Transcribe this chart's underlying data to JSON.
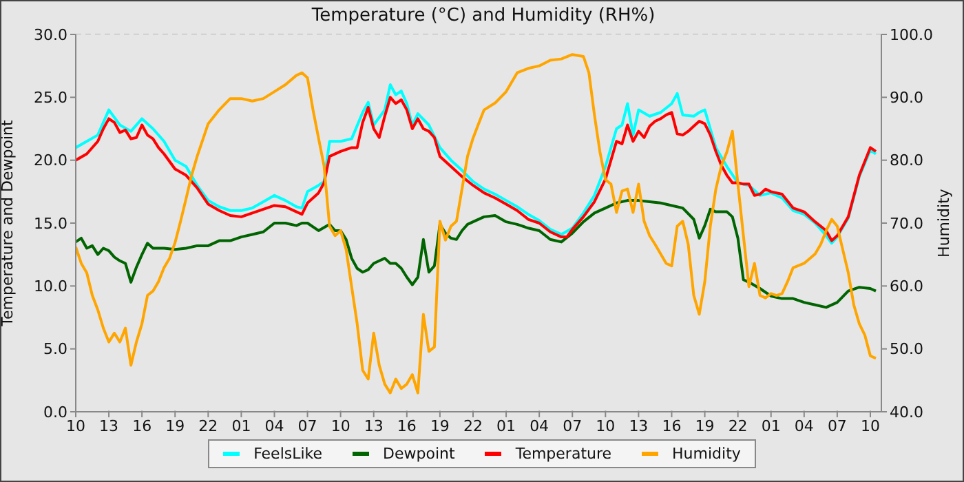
{
  "chart_data": {
    "type": "line",
    "title": "Temperature (°C) and Humidity (RH%)",
    "ylabel": "Temperature and Dewpoint",
    "y2label": "Humidity",
    "xlim": [
      "--01-01T10:00",
      "--01-04T11:00"
    ],
    "xticks": [
      {
        "value": "--01-01T10:00",
        "label": "10"
      },
      {
        "value": "--01-01T13:00",
        "label": "13"
      },
      {
        "value": "--01-01T16:00",
        "label": "16"
      },
      {
        "value": "--01-01T19:00",
        "label": "19"
      },
      {
        "value": "--01-01T22:00",
        "label": "22"
      },
      {
        "value": "--01-02T01:00",
        "label": "01"
      },
      {
        "value": "--01-02T04:00",
        "label": "04"
      },
      {
        "value": "--01-02T07:00",
        "label": "07"
      },
      {
        "value": "--01-02T10:00",
        "label": "10"
      },
      {
        "value": "--01-02T13:00",
        "label": "13"
      },
      {
        "value": "--01-02T16:00",
        "label": "16"
      },
      {
        "value": "--01-02T19:00",
        "label": "19"
      },
      {
        "value": "--01-02T22:00",
        "label": "22"
      },
      {
        "value": "--01-03T01:00",
        "label": "01"
      },
      {
        "value": "--01-03T04:00",
        "label": "04"
      },
      {
        "value": "--01-03T07:00",
        "label": "07"
      },
      {
        "value": "--01-03T10:00",
        "label": "10"
      },
      {
        "value": "--01-03T13:00",
        "label": "13"
      },
      {
        "value": "--01-03T16:00",
        "label": "16"
      },
      {
        "value": "--01-03T19:00",
        "label": "19"
      },
      {
        "value": "--01-03T22:00",
        "label": "22"
      },
      {
        "value": "--01-04T01:00",
        "label": "01"
      },
      {
        "value": "--01-04T04:00",
        "label": "04"
      },
      {
        "value": "--01-04T07:00",
        "label": "07"
      },
      {
        "value": "--01-04T10:00",
        "label": "10"
      }
    ],
    "ylim": [
      0,
      30
    ],
    "yticks": [
      {
        "value": 0,
        "label": "0.0"
      },
      {
        "value": 5,
        "label": "5.0"
      },
      {
        "value": 10,
        "label": "10.0"
      },
      {
        "value": 15,
        "label": "15.0"
      },
      {
        "value": 20,
        "label": "20.0"
      },
      {
        "value": 25,
        "label": "25.0"
      },
      {
        "value": 30,
        "label": "30.0"
      }
    ],
    "y2lim": [
      40,
      100
    ],
    "y2ticks": [
      {
        "value": 40,
        "label": "40.0"
      },
      {
        "value": 50,
        "label": "50.0"
      },
      {
        "value": 60,
        "label": "60.0"
      },
      {
        "value": 70,
        "label": "70.0"
      },
      {
        "value": 80,
        "label": "80.0"
      },
      {
        "value": 90,
        "label": "90.0"
      },
      {
        "value": 100,
        "label": "100.0"
      }
    ],
    "grid": true,
    "legend": "bottom",
    "marker": "none",
    "line_style": "solid",
    "series": [
      {
        "name": "FeelsLike",
        "color": "#00ffff",
        "x": [
          "--01-01T10:00",
          "--01-01T11:00",
          "--01-01T12:00",
          "--01-01T13:00",
          "--01-01T14:00",
          "--01-01T15:00",
          "--01-01T16:00",
          "--01-01T17:00",
          "--01-01T18:00",
          "--01-01T19:00",
          "--01-01T20:00",
          "--01-01T21:00",
          "--01-01T22:00",
          "--01-01T23:00",
          "--01-02T00:00",
          "--01-02T01:00",
          "--01-02T02:00",
          "--01-02T03:00",
          "--01-02T04:00",
          "--01-02T05:00",
          "--01-02T06:00",
          "--01-02T06:30",
          "--01-02T07:00",
          "--01-02T08:00",
          "--01-02T08:30",
          "--01-02T09:00",
          "--01-02T10:00",
          "--01-02T11:00",
          "--01-02T12:00",
          "--01-02T12:30",
          "--01-02T13:00",
          "--01-02T14:00",
          "--01-02T14:30",
          "--01-02T15:00",
          "--01-02T15:30",
          "--01-02T16:00",
          "--01-02T16:30",
          "--01-02T17:00",
          "--01-02T18:00",
          "--01-02T19:00",
          "--01-02T20:00",
          "--01-02T21:00",
          "--01-02T22:00",
          "--01-02T23:00",
          "--01-03T00:00",
          "--01-03T01:00",
          "--01-03T02:00",
          "--01-03T03:00",
          "--01-03T04:00",
          "--01-03T05:00",
          "--01-03T06:00",
          "--01-03T07:00",
          "--01-03T08:00",
          "--01-03T09:00",
          "--01-03T10:00",
          "--01-03T11:00",
          "--01-03T11:30",
          "--01-03T12:00",
          "--01-03T12:30",
          "--01-03T13:00",
          "--01-03T14:00",
          "--01-03T15:00",
          "--01-03T16:00",
          "--01-03T16:30",
          "--01-03T17:00",
          "--01-03T18:00",
          "--01-03T18:30",
          "--01-03T19:00",
          "--01-03T19:30",
          "--01-03T20:00",
          "--01-03T21:00",
          "--01-03T22:00",
          "--01-03T23:00",
          "--01-04T00:00",
          "--01-04T01:00",
          "--01-04T02:00",
          "--01-04T03:00",
          "--01-04T04:00",
          "--01-04T05:00",
          "--01-04T06:00",
          "--01-04T06:30",
          "--01-04T07:00",
          "--01-04T08:00",
          "--01-04T09:00",
          "--01-04T10:00",
          "--01-04T10:30"
        ],
        "values": [
          21.0,
          21.5,
          22.0,
          24.0,
          22.8,
          22.3,
          23.3,
          22.5,
          21.5,
          20.0,
          19.5,
          18.0,
          16.8,
          16.3,
          16.0,
          16.0,
          16.2,
          16.7,
          17.2,
          16.8,
          16.3,
          16.2,
          17.5,
          18.0,
          18.3,
          21.5,
          21.5,
          21.7,
          23.8,
          24.6,
          22.8,
          24.0,
          26.0,
          25.2,
          25.5,
          24.5,
          22.8,
          23.7,
          22.8,
          21.0,
          20.0,
          19.2,
          18.3,
          17.7,
          17.3,
          16.8,
          16.3,
          15.7,
          15.2,
          14.5,
          14.1,
          14.6,
          15.8,
          17.2,
          19.5,
          22.5,
          22.8,
          24.5,
          22.0,
          24.0,
          23.5,
          23.8,
          24.5,
          25.3,
          23.6,
          23.5,
          23.8,
          24.0,
          22.5,
          21.0,
          19.5,
          18.2,
          18.0,
          17.2,
          17.4,
          17.0,
          16.0,
          15.7,
          15.0,
          14.0,
          13.4,
          13.9,
          15.4,
          18.7,
          20.8,
          20.5
        ]
      },
      {
        "name": "Dewpoint",
        "color": "#006400",
        "x": [
          "--01-01T10:00",
          "--01-01T10:30",
          "--01-01T11:00",
          "--01-01T11:30",
          "--01-01T12:00",
          "--01-01T12:30",
          "--01-01T13:00",
          "--01-01T13:30",
          "--01-01T14:00",
          "--01-01T14:30",
          "--01-01T15:00",
          "--01-01T15:30",
          "--01-01T16:00",
          "--01-01T16:30",
          "--01-01T17:00",
          "--01-01T18:00",
          "--01-01T19:00",
          "--01-01T20:00",
          "--01-01T21:00",
          "--01-01T22:00",
          "--01-01T23:00",
          "--01-02T00:00",
          "--01-02T01:00",
          "--01-02T02:00",
          "--01-02T03:00",
          "--01-02T04:00",
          "--01-02T05:00",
          "--01-02T06:00",
          "--01-02T06:30",
          "--01-02T07:00",
          "--01-02T08:00",
          "--01-02T09:00",
          "--01-02T09:30",
          "--01-02T10:00",
          "--01-02T10:30",
          "--01-02T11:00",
          "--01-02T11:30",
          "--01-02T12:00",
          "--01-02T12:30",
          "--01-02T13:00",
          "--01-02T13:30",
          "--01-02T14:00",
          "--01-02T14:30",
          "--01-02T15:00",
          "--01-02T15:30",
          "--01-02T16:00",
          "--01-02T16:30",
          "--01-02T17:00",
          "--01-02T17:30",
          "--01-02T18:00",
          "--01-02T18:30",
          "--01-02T19:00",
          "--01-02T19:30",
          "--01-02T20:00",
          "--01-02T20:30",
          "--01-02T21:00",
          "--01-02T21:30",
          "--01-02T22:00",
          "--01-02T23:00",
          "--01-03T00:00",
          "--01-03T01:00",
          "--01-03T02:00",
          "--01-03T03:00",
          "--01-03T04:00",
          "--01-03T05:00",
          "--01-03T06:00",
          "--01-03T07:00",
          "--01-03T08:00",
          "--01-03T09:00",
          "--01-03T10:00",
          "--01-03T11:00",
          "--01-03T12:00",
          "--01-03T13:00",
          "--01-03T14:00",
          "--01-03T15:00",
          "--01-03T16:00",
          "--01-03T17:00",
          "--01-03T18:00",
          "--01-03T18:30",
          "--01-03T19:00",
          "--01-03T19:30",
          "--01-03T20:00",
          "--01-03T21:00",
          "--01-03T21:30",
          "--01-03T22:00",
          "--01-03T22:30",
          "--01-03T23:00",
          "--01-04T00:00",
          "--01-04T01:00",
          "--01-04T02:00",
          "--01-04T03:00",
          "--01-04T04:00",
          "--01-04T05:00",
          "--01-04T06:00",
          "--01-04T07:00",
          "--01-04T08:00",
          "--01-04T09:00",
          "--01-04T10:00",
          "--01-04T10:30"
        ],
        "values": [
          13.5,
          13.8,
          13.0,
          13.2,
          12.5,
          13.0,
          12.8,
          12.3,
          12.0,
          11.8,
          10.3,
          11.5,
          12.5,
          13.4,
          13.0,
          13.0,
          12.9,
          13.0,
          13.2,
          13.2,
          13.6,
          13.6,
          13.9,
          14.1,
          14.3,
          15.0,
          15.0,
          14.8,
          15.0,
          15.0,
          14.4,
          14.9,
          14.4,
          14.4,
          13.7,
          12.2,
          11.4,
          11.1,
          11.3,
          11.8,
          12.0,
          12.2,
          11.8,
          11.8,
          11.4,
          10.7,
          10.1,
          10.7,
          13.7,
          11.1,
          11.6,
          14.9,
          14.2,
          13.8,
          13.7,
          14.4,
          14.9,
          15.1,
          15.5,
          15.6,
          15.1,
          14.9,
          14.6,
          14.4,
          13.7,
          13.5,
          14.2,
          15.1,
          15.8,
          16.2,
          16.6,
          16.8,
          16.8,
          16.7,
          16.6,
          16.4,
          16.2,
          15.3,
          13.8,
          14.8,
          16.1,
          15.9,
          15.9,
          15.5,
          13.8,
          10.5,
          10.3,
          9.8,
          9.2,
          9.0,
          9.0,
          8.7,
          8.5,
          8.3,
          8.7,
          9.6,
          9.9,
          9.8,
          9.6
        ]
      },
      {
        "name": "Temperature",
        "color": "#ff0000",
        "x": [
          "--01-01T10:00",
          "--01-01T11:00",
          "--01-01T12:00",
          "--01-01T12:30",
          "--01-01T13:00",
          "--01-01T13:30",
          "--01-01T14:00",
          "--01-01T14:30",
          "--01-01T15:00",
          "--01-01T15:30",
          "--01-01T16:00",
          "--01-01T16:30",
          "--01-01T17:00",
          "--01-01T17:30",
          "--01-01T18:00",
          "--01-01T19:00",
          "--01-01T20:00",
          "--01-01T21:00",
          "--01-01T22:00",
          "--01-01T23:00",
          "--01-02T00:00",
          "--01-02T01:00",
          "--01-02T02:00",
          "--01-02T03:00",
          "--01-02T04:00",
          "--01-02T05:00",
          "--01-02T06:00",
          "--01-02T06:30",
          "--01-02T07:00",
          "--01-02T08:00",
          "--01-02T08:30",
          "--01-02T09:00",
          "--01-02T10:00",
          "--01-02T11:00",
          "--01-02T11:30",
          "--01-02T12:00",
          "--01-02T12:30",
          "--01-02T13:00",
          "--01-02T13:30",
          "--01-02T14:00",
          "--01-02T14:30",
          "--01-02T15:00",
          "--01-02T15:30",
          "--01-02T16:00",
          "--01-02T16:30",
          "--01-02T17:00",
          "--01-02T17:30",
          "--01-02T18:00",
          "--01-02T18:30",
          "--01-02T19:00",
          "--01-02T20:00",
          "--01-02T21:00",
          "--01-02T22:00",
          "--01-02T23:00",
          "--01-03T00:00",
          "--01-03T01:00",
          "--01-03T02:00",
          "--01-03T03:00",
          "--01-03T04:00",
          "--01-03T05:00",
          "--01-03T06:00",
          "--01-03T06:30",
          "--01-03T07:00",
          "--01-03T08:00",
          "--01-03T09:00",
          "--01-03T10:00",
          "--01-03T10:30",
          "--01-03T11:00",
          "--01-03T11:30",
          "--01-03T12:00",
          "--01-03T12:30",
          "--01-03T13:00",
          "--01-03T13:30",
          "--01-03T14:00",
          "--01-03T14:30",
          "--01-03T15:00",
          "--01-03T15:30",
          "--01-03T16:00",
          "--01-03T16:30",
          "--01-03T17:00",
          "--01-03T17:30",
          "--01-03T18:00",
          "--01-03T18:30",
          "--01-03T19:00",
          "--01-03T19:30",
          "--01-03T20:00",
          "--01-03T20:30",
          "--01-03T21:00",
          "--01-03T21:30",
          "--01-03T22:00",
          "--01-03T22:30",
          "--01-03T23:00",
          "--01-03T23:30",
          "--01-04T00:00",
          "--01-04T00:30",
          "--01-04T01:00",
          "--01-04T02:00",
          "--01-04T03:00",
          "--01-04T04:00",
          "--01-04T05:00",
          "--01-04T06:00",
          "--01-04T06:30",
          "--01-04T07:00",
          "--01-04T08:00",
          "--01-04T09:00",
          "--01-04T09:30",
          "--01-04T10:00",
          "--01-04T10:30"
        ],
        "values": [
          20.0,
          20.5,
          21.5,
          22.5,
          23.3,
          23.0,
          22.2,
          22.4,
          21.7,
          21.8,
          22.8,
          22.0,
          21.7,
          21.0,
          20.5,
          19.3,
          18.8,
          17.8,
          16.5,
          16.0,
          15.6,
          15.5,
          15.8,
          16.1,
          16.4,
          16.3,
          15.9,
          15.7,
          16.6,
          17.4,
          18.2,
          20.3,
          20.7,
          21.0,
          21.0,
          23.0,
          24.2,
          22.5,
          21.8,
          23.5,
          25.0,
          24.5,
          24.8,
          24.0,
          22.5,
          23.3,
          22.5,
          22.3,
          21.8,
          20.3,
          19.5,
          18.7,
          18.0,
          17.4,
          17.0,
          16.5,
          16.0,
          15.3,
          15.0,
          14.3,
          13.9,
          13.9,
          14.5,
          15.5,
          16.7,
          18.5,
          20.0,
          21.5,
          21.3,
          22.8,
          21.5,
          22.3,
          21.8,
          22.7,
          23.1,
          23.3,
          23.6,
          23.8,
          22.1,
          22.0,
          22.3,
          22.7,
          23.1,
          22.9,
          22.0,
          20.7,
          19.6,
          18.8,
          18.2,
          18.2,
          18.1,
          18.1,
          17.2,
          17.3,
          17.7,
          17.5,
          17.3,
          16.2,
          15.9,
          15.1,
          14.4,
          13.6,
          14.0,
          15.5,
          18.8,
          19.9,
          21.0,
          20.7
        ]
      },
      {
        "name": "Humidity",
        "color": "#ffa500",
        "axis": "y2",
        "x": [
          "--01-01T10:00",
          "--01-01T10:30",
          "--01-01T11:00",
          "--01-01T11:30",
          "--01-01T12:00",
          "--01-01T12:30",
          "--01-01T13:00",
          "--01-01T13:30",
          "--01-01T14:00",
          "--01-01T14:30",
          "--01-01T15:00",
          "--01-01T15:30",
          "--01-01T16:00",
          "--01-01T16:30",
          "--01-01T17:00",
          "--01-01T17:30",
          "--01-01T18:00",
          "--01-01T18:30",
          "--01-01T19:00",
          "--01-01T19:30",
          "--01-01T20:00",
          "--01-01T20:30",
          "--01-01T21:00",
          "--01-01T22:00",
          "--01-01T23:00",
          "--01-02T00:00",
          "--01-02T01:00",
          "--01-02T02:00",
          "--01-02T03:00",
          "--01-02T04:00",
          "--01-02T05:00",
          "--01-02T06:00",
          "--01-02T06:30",
          "--01-02T07:00",
          "--01-02T07:30",
          "--01-02T08:00",
          "--01-02T08:30",
          "--01-02T09:00",
          "--01-02T09:30",
          "--01-02T10:00",
          "--01-02T10:30",
          "--01-02T11:00",
          "--01-02T11:30",
          "--01-02T12:00",
          "--01-02T12:30",
          "--01-02T13:00",
          "--01-02T13:30",
          "--01-02T14:00",
          "--01-02T14:30",
          "--01-02T15:00",
          "--01-02T15:30",
          "--01-02T16:00",
          "--01-02T16:30",
          "--01-02T17:00",
          "--01-02T17:30",
          "--01-02T18:00",
          "--01-02T18:30",
          "--01-02T19:00",
          "--01-02T19:30",
          "--01-02T20:00",
          "--01-02T20:30",
          "--01-02T21:00",
          "--01-02T21:30",
          "--01-02T22:00",
          "--01-02T22:30",
          "--01-02T23:00",
          "--01-03T00:00",
          "--01-03T01:00",
          "--01-03T02:00",
          "--01-03T03:00",
          "--01-03T04:00",
          "--01-03T05:00",
          "--01-03T06:00",
          "--01-03T07:00",
          "--01-03T08:00",
          "--01-03T08:30",
          "--01-03T09:00",
          "--01-03T09:30",
          "--01-03T10:00",
          "--01-03T10:30",
          "--01-03T11:00",
          "--01-03T11:30",
          "--01-03T12:00",
          "--01-03T12:30",
          "--01-03T13:00",
          "--01-03T13:30",
          "--01-03T14:00",
          "--01-03T14:30",
          "--01-03T15:00",
          "--01-03T15:30",
          "--01-03T16:00",
          "--01-03T16:30",
          "--01-03T17:00",
          "--01-03T17:30",
          "--01-03T18:00",
          "--01-03T18:30",
          "--01-03T19:00",
          "--01-03T19:30",
          "--01-03T20:00",
          "--01-03T20:30",
          "--01-03T21:00",
          "--01-03T21:30",
          "--01-03T22:00",
          "--01-03T22:30",
          "--01-03T23:00",
          "--01-03T23:30",
          "--01-04T00:00",
          "--01-04T00:30",
          "--01-04T01:00",
          "--01-04T01:30",
          "--01-04T02:00",
          "--01-04T02:30",
          "--01-04T03:00",
          "--01-04T04:00",
          "--01-04T05:00",
          "--01-04T05:30",
          "--01-04T06:00",
          "--01-04T06:30",
          "--01-04T07:00",
          "--01-04T07:30",
          "--01-04T08:00",
          "--01-04T08:30",
          "--01-04T09:00",
          "--01-04T09:30",
          "--01-04T10:00",
          "--01-04T10:30"
        ],
        "values": [
          66.2,
          63.6,
          62.1,
          58.5,
          56.2,
          53.3,
          51.1,
          52.5,
          51.1,
          53.3,
          47.4,
          51.1,
          54.0,
          58.5,
          59.2,
          60.7,
          62.9,
          64.4,
          66.9,
          70.3,
          73.9,
          77.6,
          80.6,
          85.8,
          88.0,
          89.8,
          89.8,
          89.4,
          89.8,
          90.9,
          92.0,
          93.5,
          93.9,
          93.1,
          88.0,
          83.5,
          79.1,
          69.5,
          68.0,
          68.8,
          65.8,
          59.9,
          54.0,
          46.6,
          45.2,
          52.5,
          47.4,
          44.4,
          43.0,
          45.2,
          43.7,
          44.4,
          45.9,
          43.0,
          55.5,
          49.6,
          50.3,
          70.3,
          67.3,
          69.5,
          70.3,
          75.4,
          80.6,
          83.5,
          85.8,
          88.0,
          89.1,
          90.9,
          93.9,
          94.6,
          95.0,
          95.9,
          96.1,
          96.8,
          96.5,
          93.9,
          87.2,
          81.3,
          76.9,
          76.2,
          71.7,
          75.1,
          75.4,
          71.7,
          76.2,
          70.3,
          68.0,
          66.6,
          65.1,
          63.6,
          63.2,
          69.5,
          70.3,
          66.6,
          58.5,
          55.5,
          60.7,
          69.5,
          75.4,
          79.1,
          81.3,
          84.6,
          76.2,
          68.0,
          59.9,
          63.6,
          58.5,
          58.1,
          58.8,
          58.5,
          58.8,
          60.7,
          62.9,
          63.6,
          65.1,
          66.6,
          68.8,
          70.6,
          69.5,
          65.8,
          62.1,
          57.0,
          54.0,
          52.2,
          48.9,
          48.5
        ]
      }
    ]
  }
}
